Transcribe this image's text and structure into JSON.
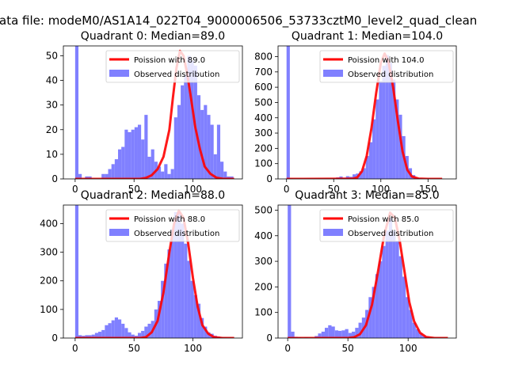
{
  "suptitle": "ata file: modeM0/AS1A14_022T04_9000006506_53733cztM0_level2_quad_clean",
  "legend_line_prefix": "Poission with ",
  "legend_bar_label": "Observed distribution",
  "colors": {
    "curve": "#ff0000",
    "bars": "#8080ff",
    "bars_overlap": "#ff8080"
  },
  "chart_data": [
    {
      "type": "bar",
      "title": "Quadrant 0: Median=89.0",
      "median": 89.0,
      "xlim": [
        -10,
        142
      ],
      "ylim": [
        0,
        54
      ],
      "xticks": [
        0,
        50,
        100
      ],
      "yticks": [
        0,
        10,
        20,
        30,
        40,
        50
      ],
      "legend": "Poission with 89.0",
      "hist_bin_width": 2.8,
      "hist": [
        [
          0,
          55
        ],
        [
          2.8,
          2
        ],
        [
          8.4,
          1
        ],
        [
          11.2,
          1
        ],
        [
          22.4,
          2
        ],
        [
          25.2,
          2
        ],
        [
          28,
          4
        ],
        [
          30.8,
          6
        ],
        [
          33.6,
          8
        ],
        [
          36.4,
          12
        ],
        [
          39.2,
          13
        ],
        [
          42,
          20
        ],
        [
          44.8,
          19
        ],
        [
          47.6,
          20
        ],
        [
          50.4,
          21
        ],
        [
          53.2,
          22
        ],
        [
          56,
          16
        ],
        [
          58.8,
          26
        ],
        [
          61.6,
          9
        ],
        [
          64.4,
          12
        ],
        [
          67.2,
          7
        ],
        [
          70,
          5
        ],
        [
          72.8,
          3
        ],
        [
          75.6,
          6
        ],
        [
          78.4,
          2
        ],
        [
          81.2,
          4
        ],
        [
          84,
          25
        ],
        [
          86.8,
          30
        ],
        [
          89.6,
          38
        ],
        [
          92.4,
          42
        ],
        [
          95.2,
          50
        ],
        [
          98,
          48
        ],
        [
          100.8,
          46
        ],
        [
          103.6,
          34
        ],
        [
          106.4,
          28
        ],
        [
          109.2,
          30
        ],
        [
          112,
          26
        ],
        [
          114.8,
          22
        ],
        [
          117.6,
          10
        ],
        [
          120.4,
          22
        ],
        [
          123.2,
          7
        ],
        [
          126,
          3
        ],
        [
          128.8,
          1
        ],
        [
          131.6,
          1
        ]
      ],
      "curve": {
        "x": [
          0,
          55,
          60,
          65,
          70,
          75,
          80,
          83,
          86,
          89,
          92,
          95,
          98,
          102,
          106,
          110,
          115,
          120,
          125,
          135
        ],
        "y": [
          0,
          0,
          0.4,
          1.5,
          4,
          9,
          20,
          33,
          45,
          52,
          50,
          43,
          34,
          21,
          12,
          5,
          2,
          0.5,
          0.1,
          0
        ]
      }
    },
    {
      "type": "bar",
      "title": "Quadrant 1: Median=104.0",
      "median": 104.0,
      "xlim": [
        -9,
        180
      ],
      "ylim": [
        0,
        870
      ],
      "xticks": [
        0,
        50,
        100,
        150
      ],
      "yticks": [
        0,
        100,
        200,
        300,
        400,
        500,
        600,
        700,
        800
      ],
      "legend": "Poission with 104.0",
      "hist_bin_width": 3.5,
      "hist": [
        [
          0,
          870
        ],
        [
          3.5,
          3
        ],
        [
          52.5,
          10
        ],
        [
          56,
          16
        ],
        [
          59.5,
          8
        ],
        [
          63,
          18
        ],
        [
          66.5,
          14
        ],
        [
          70,
          30
        ],
        [
          73.5,
          35
        ],
        [
          77,
          50
        ],
        [
          80.5,
          70
        ],
        [
          84,
          150
        ],
        [
          87.5,
          240
        ],
        [
          91,
          390
        ],
        [
          94.5,
          520
        ],
        [
          98,
          640
        ],
        [
          101.5,
          740
        ],
        [
          105,
          810
        ],
        [
          108.5,
          760
        ],
        [
          112,
          650
        ],
        [
          115.5,
          520
        ],
        [
          119,
          420
        ],
        [
          122.5,
          280
        ],
        [
          126,
          150
        ],
        [
          129.5,
          70
        ],
        [
          133,
          25
        ],
        [
          136.5,
          10
        ],
        [
          140,
          5
        ]
      ],
      "curve": {
        "x": [
          0,
          70,
          75,
          80,
          85,
          90,
          95,
          100,
          104,
          108,
          113,
          118,
          123,
          128,
          133,
          140,
          150,
          165
        ],
        "y": [
          0,
          1,
          10,
          50,
          150,
          330,
          560,
          760,
          820,
          770,
          600,
          380,
          180,
          60,
          15,
          2,
          0,
          0
        ]
      }
    },
    {
      "type": "bar",
      "title": "Quadrant 2: Median=88.0",
      "median": 88.0,
      "xlim": [
        -10,
        142
      ],
      "ylim": [
        0,
        465
      ],
      "xticks": [
        0,
        50,
        100
      ],
      "yticks": [
        0,
        100,
        200,
        300,
        400
      ],
      "legend": "Poission with 88.0",
      "hist_bin_width": 2.8,
      "hist": [
        [
          0,
          465
        ],
        [
          2.8,
          10
        ],
        [
          5.6,
          8
        ],
        [
          8.4,
          10
        ],
        [
          11.2,
          10
        ],
        [
          14,
          12
        ],
        [
          16.8,
          18
        ],
        [
          19.6,
          22
        ],
        [
          22.4,
          28
        ],
        [
          25.2,
          45
        ],
        [
          28,
          52
        ],
        [
          30.8,
          62
        ],
        [
          33.6,
          72
        ],
        [
          36.4,
          65
        ],
        [
          39.2,
          50
        ],
        [
          42,
          35
        ],
        [
          44.8,
          20
        ],
        [
          47.6,
          12
        ],
        [
          50.4,
          8
        ],
        [
          53.2,
          18
        ],
        [
          56,
          25
        ],
        [
          58.8,
          40
        ],
        [
          61.6,
          50
        ],
        [
          64.4,
          60
        ],
        [
          67.2,
          100
        ],
        [
          70,
          130
        ],
        [
          72.8,
          200
        ],
        [
          75.6,
          260
        ],
        [
          78.4,
          310
        ],
        [
          81.2,
          380
        ],
        [
          84,
          440
        ],
        [
          86.8,
          440
        ],
        [
          89.6,
          400
        ],
        [
          92.4,
          330
        ],
        [
          95.2,
          270
        ],
        [
          98,
          200
        ],
        [
          100.8,
          150
        ],
        [
          103.6,
          120
        ],
        [
          106.4,
          70
        ],
        [
          109.2,
          40
        ],
        [
          112,
          20
        ],
        [
          114.8,
          15
        ],
        [
          117.6,
          8
        ],
        [
          120.4,
          5
        ],
        [
          123.2,
          3
        ],
        [
          126,
          2
        ]
      ],
      "curve": {
        "x": [
          0,
          55,
          60,
          65,
          70,
          75,
          80,
          84,
          88,
          92,
          96,
          100,
          104,
          108,
          113,
          118,
          125,
          135
        ],
        "y": [
          0,
          0,
          3,
          20,
          60,
          160,
          300,
          400,
          445,
          420,
          330,
          210,
          110,
          45,
          15,
          3,
          0,
          0
        ]
      }
    },
    {
      "type": "bar",
      "title": "Quadrant 3: Median=85.0",
      "median": 85.0,
      "xlim": [
        -8,
        140
      ],
      "ylim": [
        0,
        520
      ],
      "xticks": [
        0,
        50,
        100
      ],
      "yticks": [
        0,
        100,
        200,
        300,
        400,
        500
      ],
      "legend": "Poission with 85.0",
      "hist_bin_width": 2.8,
      "hist": [
        [
          0,
          520
        ],
        [
          2.8,
          25
        ],
        [
          5.6,
          5
        ],
        [
          8.4,
          3
        ],
        [
          14,
          3
        ],
        [
          22.4,
          8
        ],
        [
          25.2,
          18
        ],
        [
          28,
          25
        ],
        [
          30.8,
          40
        ],
        [
          33.6,
          50
        ],
        [
          36.4,
          45
        ],
        [
          39.2,
          30
        ],
        [
          42,
          28
        ],
        [
          44.8,
          30
        ],
        [
          47.6,
          35
        ],
        [
          50.4,
          20
        ],
        [
          53.2,
          25
        ],
        [
          56,
          40
        ],
        [
          58.8,
          60
        ],
        [
          61.6,
          80
        ],
        [
          64.4,
          110
        ],
        [
          67.2,
          160
        ],
        [
          70,
          200
        ],
        [
          72.8,
          250
        ],
        [
          75.6,
          300
        ],
        [
          78.4,
          360
        ],
        [
          81.2,
          420
        ],
        [
          84,
          470
        ],
        [
          86.8,
          420
        ],
        [
          89.6,
          380
        ],
        [
          92.4,
          320
        ],
        [
          95.2,
          240
        ],
        [
          98,
          160
        ],
        [
          100.8,
          110
        ],
        [
          103.6,
          60
        ],
        [
          106.4,
          35
        ],
        [
          109.2,
          20
        ],
        [
          112,
          10
        ],
        [
          114.8,
          5
        ]
      ],
      "curve": {
        "x": [
          0,
          50,
          55,
          60,
          65,
          70,
          75,
          80,
          85,
          89,
          93,
          97,
          101,
          105,
          110,
          115,
          122,
          133
        ],
        "y": [
          0,
          0,
          3,
          15,
          50,
          130,
          260,
          400,
          490,
          470,
          380,
          260,
          140,
          65,
          20,
          4,
          0,
          0
        ]
      }
    }
  ]
}
